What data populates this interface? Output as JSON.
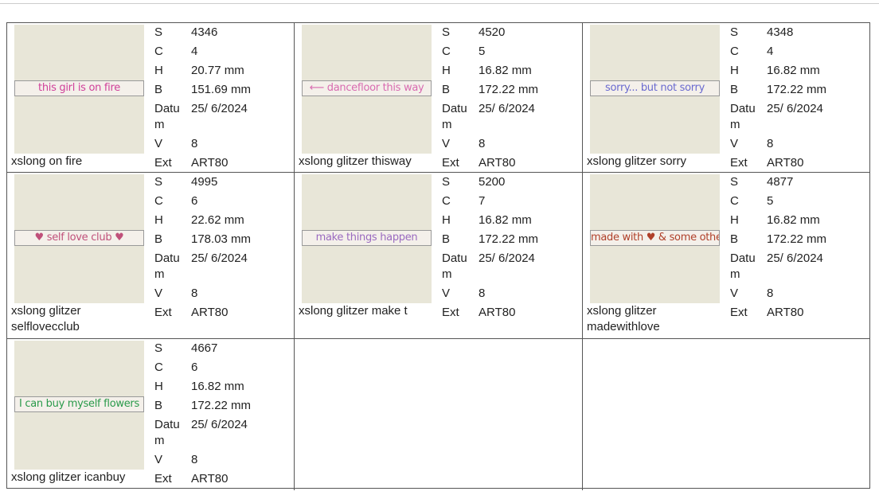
{
  "items": [
    {
      "preview": "this girl is on fire",
      "preview_color": "#d0409a",
      "name": "xslong on fire",
      "fields": [
        {
          "label": "S",
          "value": "4346"
        },
        {
          "label": "C",
          "value": "4"
        },
        {
          "label": "H",
          "value": "20.77 mm"
        },
        {
          "label": "B",
          "value": "151.69 mm"
        },
        {
          "label": "Datum",
          "value": "25/ 6/2024"
        },
        {
          "label": "V",
          "value": "8"
        },
        {
          "label": "Ext",
          "value": "ART80"
        }
      ]
    },
    {
      "preview": "⟵ dancefloor this way",
      "preview_color": "#d86ab0",
      "name": "xslong glitzer thisway",
      "fields": [
        {
          "label": "S",
          "value": "4520"
        },
        {
          "label": "C",
          "value": "5"
        },
        {
          "label": "H",
          "value": "16.82 mm"
        },
        {
          "label": "B",
          "value": "172.22 mm"
        },
        {
          "label": "Datum",
          "value": "25/ 6/2024"
        },
        {
          "label": "V",
          "value": "8"
        },
        {
          "label": "Ext",
          "value": "ART80"
        }
      ]
    },
    {
      "preview": "sorry... but not sorry",
      "preview_color": "#6a6ad0",
      "name": "xslong glitzer sorry",
      "fields": [
        {
          "label": "S",
          "value": "4348"
        },
        {
          "label": "C",
          "value": "4"
        },
        {
          "label": "H",
          "value": "16.82 mm"
        },
        {
          "label": "B",
          "value": "172.22 mm"
        },
        {
          "label": "Datum",
          "value": "25/ 6/2024"
        },
        {
          "label": "V",
          "value": "8"
        },
        {
          "label": "Ext",
          "value": "ART80"
        }
      ]
    },
    {
      "preview": "♥ self love club ♥",
      "preview_color": "#c0507a",
      "name": "xslong glitzer selflovecclub",
      "fields": [
        {
          "label": "S",
          "value": "4995"
        },
        {
          "label": "C",
          "value": "6"
        },
        {
          "label": "H",
          "value": "22.62 mm"
        },
        {
          "label": "B",
          "value": "178.03 mm"
        },
        {
          "label": "Datum",
          "value": "25/ 6/2024"
        },
        {
          "label": "V",
          "value": "8"
        },
        {
          "label": "Ext",
          "value": "ART80"
        }
      ]
    },
    {
      "preview": "make things happen",
      "preview_color": "#9a6ac0",
      "name": "xslong glitzer make t",
      "fields": [
        {
          "label": "S",
          "value": "5200"
        },
        {
          "label": "C",
          "value": "7"
        },
        {
          "label": "H",
          "value": "16.82 mm"
        },
        {
          "label": "B",
          "value": "172.22 mm"
        },
        {
          "label": "Datum",
          "value": "25/ 6/2024"
        },
        {
          "label": "V",
          "value": "8"
        },
        {
          "label": "Ext",
          "value": "ART80"
        }
      ]
    },
    {
      "preview": "made with ♥ & some other shit",
      "preview_color": "#b0402a",
      "name": "xslong glitzer madewithlove",
      "fields": [
        {
          "label": "S",
          "value": "4877"
        },
        {
          "label": "C",
          "value": "5"
        },
        {
          "label": "H",
          "value": "16.82 mm"
        },
        {
          "label": "B",
          "value": "172.22 mm"
        },
        {
          "label": "Datum",
          "value": "25/ 6/2024"
        },
        {
          "label": "V",
          "value": "8"
        },
        {
          "label": "Ext",
          "value": "ART80"
        }
      ]
    },
    {
      "preview": "I can buy myself flowers",
      "preview_color": "#2a9a4a",
      "name": "xslong glitzer icanbuy",
      "fields": [
        {
          "label": "S",
          "value": "4667"
        },
        {
          "label": "C",
          "value": "6"
        },
        {
          "label": "H",
          "value": "16.82 mm"
        },
        {
          "label": "B",
          "value": "172.22 mm"
        },
        {
          "label": "Datum",
          "value": "25/ 6/2024"
        },
        {
          "label": "V",
          "value": "8"
        },
        {
          "label": "Ext",
          "value": "ART80"
        }
      ]
    }
  ]
}
